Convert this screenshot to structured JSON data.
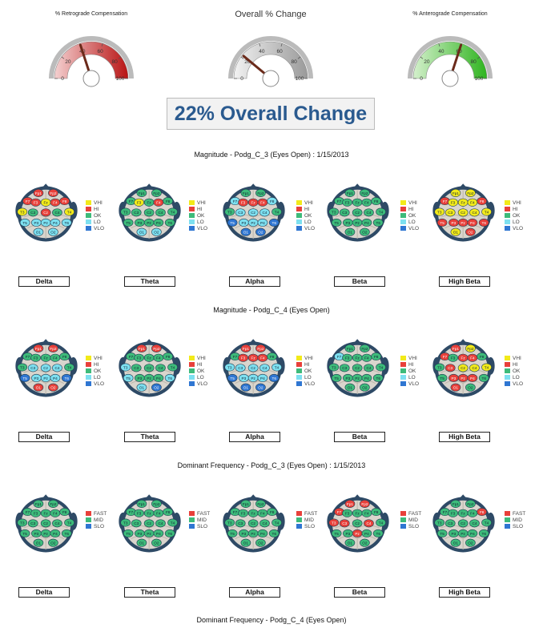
{
  "gauges": [
    {
      "title": "% Retrograde Compensation",
      "ticks": [
        "0",
        "20",
        "40",
        "60",
        "80",
        "100"
      ],
      "value": 40,
      "arc_colors": [
        "#f4d0d0",
        "#b81414"
      ]
    },
    {
      "title": "Overall % Change",
      "ticks": [
        "0",
        "20",
        "40",
        "60",
        "80",
        "100"
      ],
      "value": 22,
      "arc_colors": [
        "#f2f2f2",
        "#9a9a9a"
      ]
    },
    {
      "title": "% Anterograde Compensation",
      "ticks": [
        "0",
        "20",
        "40",
        "60",
        "80",
        "100"
      ],
      "value": 60,
      "arc_colors": [
        "#d4f0cc",
        "#2fb41f"
      ]
    }
  ],
  "overall_text": "22% Overall Change",
  "colors": {
    "VHI": "#f2ea1a",
    "HI": "#e8403a",
    "OK": "#3dbb7a",
    "LO": "#7de0f0",
    "VLO": "#2f76d2",
    "FAST": "#e8403a",
    "MID": "#3dbb7a",
    "SLO": "#2f76d2"
  },
  "magnitude_legend": [
    "VHI",
    "HI",
    "OK",
    "LO",
    "VLO"
  ],
  "frequency_legend": [
    "FAST",
    "MID",
    "SLO"
  ],
  "electrodes": [
    "Fp1",
    "Fp2",
    "F7",
    "F3",
    "Fz",
    "F4",
    "F8",
    "T3",
    "C3",
    "Cz",
    "C4",
    "T4",
    "T5",
    "P3",
    "Pz",
    "P4",
    "T6",
    "O1",
    "O2"
  ],
  "sections": [
    {
      "title": "Magnitude - Podg_C_3 (Eyes Open) : 1/15/2013",
      "legend": "magnitude",
      "maps": [
        {
          "band": "Delta",
          "colors": [
            "HI",
            "HI",
            "HI",
            "HI",
            "VHI",
            "HI",
            "HI",
            "VHI",
            "OK",
            "HI",
            "OK",
            "VHI",
            "LO",
            "LO",
            "LO",
            "LO",
            "LO",
            "LO",
            "LO"
          ]
        },
        {
          "band": "Theta",
          "colors": [
            "OK",
            "OK",
            "OK",
            "VHI",
            "OK",
            "HI",
            "OK",
            "OK",
            "OK",
            "OK",
            "OK",
            "OK",
            "OK",
            "OK",
            "OK",
            "OK",
            "OK",
            "LO",
            "LO"
          ]
        },
        {
          "band": "Alpha",
          "colors": [
            "OK",
            "OK",
            "LO",
            "HI",
            "HI",
            "HI",
            "LO",
            "OK",
            "LO",
            "LO",
            "LO",
            "OK",
            "VLO",
            "LO",
            "LO",
            "LO",
            "VLO",
            "VLO",
            "VLO"
          ]
        },
        {
          "band": "Beta",
          "colors": [
            "OK",
            "OK",
            "OK",
            "OK",
            "OK",
            "OK",
            "OK",
            "OK",
            "OK",
            "OK",
            "OK",
            "OK",
            "OK",
            "OK",
            "OK",
            "OK",
            "OK",
            "OK",
            "OK"
          ]
        },
        {
          "band": "High Beta",
          "colors": [
            "VHI",
            "VHI",
            "HI",
            "VHI",
            "VHI",
            "VHI",
            "HI",
            "VHI",
            "VHI",
            "VHI",
            "VHI",
            "VHI",
            "HI",
            "HI",
            "HI",
            "HI",
            "HI",
            "VHI",
            "HI"
          ]
        }
      ]
    },
    {
      "title": "Magnitude - Podg_C_4 (Eyes Open)",
      "legend": "magnitude",
      "maps": [
        {
          "band": "Delta",
          "colors": [
            "HI",
            "HI",
            "OK",
            "OK",
            "OK",
            "OK",
            "OK",
            "OK",
            "LO",
            "LO",
            "LO",
            "OK",
            "VLO",
            "LO",
            "LO",
            "LO",
            "VLO",
            "HI",
            "HI"
          ]
        },
        {
          "band": "Theta",
          "colors": [
            "HI",
            "HI",
            "OK",
            "OK",
            "OK",
            "OK",
            "OK",
            "LO",
            "OK",
            "OK",
            "OK",
            "OK",
            "LO",
            "OK",
            "OK",
            "OK",
            "LO",
            "LO",
            "VLO"
          ]
        },
        {
          "band": "Alpha",
          "colors": [
            "HI",
            "HI",
            "OK",
            "HI",
            "HI",
            "HI",
            "OK",
            "LO",
            "LO",
            "LO",
            "LO",
            "LO",
            "VLO",
            "LO",
            "LO",
            "LO",
            "VLO",
            "VLO",
            "VLO"
          ]
        },
        {
          "band": "Beta",
          "colors": [
            "OK",
            "OK",
            "LO",
            "OK",
            "OK",
            "OK",
            "OK",
            "OK",
            "OK",
            "OK",
            "OK",
            "OK",
            "OK",
            "OK",
            "OK",
            "OK",
            "OK",
            "OK",
            "OK"
          ]
        },
        {
          "band": "High Beta",
          "colors": [
            "HI",
            "VHI",
            "HI",
            "OK",
            "HI",
            "HI",
            "OK",
            "OK",
            "HI",
            "VHI",
            "VHI",
            "VHI",
            "OK",
            "HI",
            "HI",
            "HI",
            "OK",
            "HI",
            "OK"
          ]
        }
      ]
    },
    {
      "title": "Dominant Frequency - Podg_C_3 (Eyes Open) : 1/15/2013",
      "legend": "frequency",
      "maps": [
        {
          "band": "Delta",
          "colors": [
            "MID",
            "MID",
            "MID",
            "MID",
            "MID",
            "MID",
            "MID",
            "MID",
            "MID",
            "MID",
            "MID",
            "MID",
            "MID",
            "MID",
            "MID",
            "MID",
            "MID",
            "MID",
            "MID"
          ]
        },
        {
          "band": "Theta",
          "colors": [
            "MID",
            "MID",
            "MID",
            "MID",
            "MID",
            "MID",
            "MID",
            "MID",
            "MID",
            "MID",
            "MID",
            "MID",
            "MID",
            "MID",
            "MID",
            "MID",
            "MID",
            "MID",
            "MID"
          ]
        },
        {
          "band": "Alpha",
          "colors": [
            "MID",
            "MID",
            "MID",
            "MID",
            "MID",
            "MID",
            "MID",
            "MID",
            "MID",
            "MID",
            "MID",
            "MID",
            "MID",
            "MID",
            "MID",
            "MID",
            "MID",
            "MID",
            "MID"
          ]
        },
        {
          "band": "Beta",
          "colors": [
            "FAST",
            "FAST",
            "FAST",
            "MID",
            "MID",
            "MID",
            "MID",
            "FAST",
            "FAST",
            "MID",
            "FAST",
            "MID",
            "MID",
            "MID",
            "FAST",
            "MID",
            "MID",
            "MID",
            "MID"
          ]
        },
        {
          "band": "High Beta",
          "colors": [
            "MID",
            "MID",
            "MID",
            "MID",
            "MID",
            "MID",
            "FAST",
            "MID",
            "MID",
            "MID",
            "MID",
            "MID",
            "MID",
            "MID",
            "MID",
            "MID",
            "MID",
            "MID",
            "MID"
          ]
        }
      ]
    }
  ],
  "footer_title": "Dominant Frequency - Podg_C_4 (Eyes Open)"
}
